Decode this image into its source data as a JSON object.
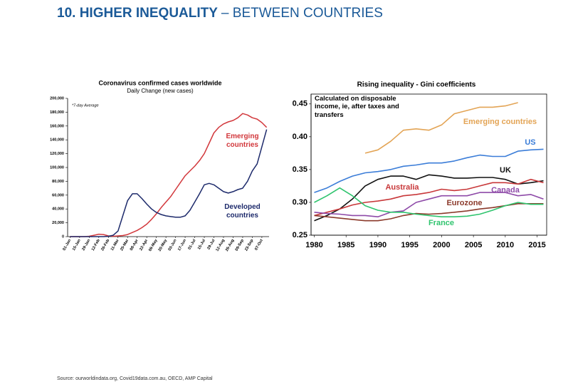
{
  "header": {
    "title": [
      "10. HIGHER INEQUALITY",
      "– BETWEEN COUNTRIES"
    ]
  },
  "chart_data": [
    {
      "type": "line",
      "title": "Coronavirus confirmed cases worldwide",
      "subtitle": "Daily Change (new cases)",
      "annotation": "*7-day Average",
      "categories": [
        "01-Jan",
        null,
        "15-Jan",
        null,
        "29-Jan",
        null,
        "12-Feb",
        null,
        "26-Feb",
        null,
        "11-Mar",
        null,
        "25-Mar",
        null,
        "08-Apr",
        null,
        "22-Apr",
        null,
        "06-May",
        null,
        "20-May",
        null,
        "03-Jun",
        null,
        "17-Jun",
        null,
        "01-Jul",
        null,
        "15-Jul",
        null,
        "29-Jul",
        null,
        "12-Aug",
        null,
        "26-Aug",
        null,
        "09-Sep",
        null,
        "23-Sep",
        null,
        "07-Oct",
        null
      ],
      "series": [
        {
          "name": "Emerging countries",
          "color": "#d2383c",
          "values": [
            0,
            0,
            0,
            0,
            500,
            2000,
            3500,
            3000,
            1000,
            500,
            1000,
            1500,
            3000,
            6000,
            9000,
            13000,
            18000,
            25000,
            33000,
            42000,
            50000,
            58000,
            68000,
            78000,
            88000,
            95000,
            102000,
            110000,
            120000,
            135000,
            150000,
            158000,
            163000,
            166000,
            168000,
            172000,
            178000,
            176000,
            172000,
            170000,
            165000,
            158000
          ]
        },
        {
          "name": "Developed countries",
          "color": "#1d2a6b",
          "values": [
            0,
            0,
            0,
            0,
            0,
            0,
            0,
            0,
            500,
            2000,
            8000,
            30000,
            52000,
            62000,
            62000,
            55000,
            47000,
            40000,
            35000,
            32000,
            30000,
            29000,
            28000,
            28000,
            30000,
            38000,
            50000,
            62000,
            75000,
            77000,
            75000,
            70000,
            65000,
            63000,
            65000,
            68000,
            70000,
            80000,
            95000,
            105000,
            130000,
            155000
          ]
        }
      ],
      "ylim": [
        0,
        200000
      ],
      "yticks": [
        0,
        {
          "value": 20000,
          "label": "20,000"
        },
        {
          "value": 40000,
          "label": "40,000"
        },
        {
          "value": 60000,
          "label": "60,000"
        },
        {
          "value": 80000,
          "label": "80,000"
        },
        {
          "value": 100000,
          "label": "100,000"
        },
        {
          "value": 120000,
          "label": "120,000"
        },
        {
          "value": 140000,
          "label": "140,000"
        },
        {
          "value": 160000,
          "label": "160,000"
        },
        {
          "value": 180000,
          "label": "180,000"
        },
        {
          "value": 200000,
          "label": "200,000"
        }
      ]
    },
    {
      "type": "line",
      "title": "Rising inequality - Gini coefficients",
      "annotation": "Calculated on disposable income, ie, after taxes and transfers",
      "x": [
        1980,
        1982,
        1984,
        1986,
        1988,
        1990,
        1992,
        1994,
        1996,
        1998,
        2000,
        2002,
        2004,
        2006,
        2008,
        2010,
        2012,
        2014,
        2016
      ],
      "series": [
        {
          "name": "Emerging countries",
          "color": "#e3a455",
          "values": [
            null,
            null,
            null,
            null,
            0.375,
            0.38,
            0.393,
            0.41,
            0.412,
            0.41,
            0.418,
            0.435,
            0.44,
            0.445,
            0.445,
            0.447,
            0.452,
            null,
            null
          ]
        },
        {
          "name": "US",
          "color": "#3b7dd8",
          "values": [
            0.315,
            0.322,
            0.332,
            0.34,
            0.345,
            0.347,
            0.35,
            0.355,
            0.357,
            0.36,
            0.36,
            0.363,
            0.368,
            0.372,
            0.37,
            0.37,
            0.378,
            0.38,
            0.381
          ]
        },
        {
          "name": "UK",
          "color": "#111111",
          "values": [
            0.272,
            0.28,
            0.29,
            0.305,
            0.325,
            0.335,
            0.34,
            0.34,
            0.335,
            0.342,
            0.34,
            0.337,
            0.337,
            0.338,
            0.338,
            0.335,
            0.328,
            0.33,
            0.333
          ]
        },
        {
          "name": "Australia",
          "color": "#c8383a",
          "values": [
            0.28,
            0.285,
            0.29,
            0.296,
            0.3,
            0.302,
            0.305,
            0.31,
            0.312,
            0.315,
            0.32,
            0.318,
            0.32,
            0.325,
            0.33,
            0.33,
            0.328,
            0.335,
            0.33
          ]
        },
        {
          "name": "Canada",
          "color": "#8e4aa8",
          "values": [
            0.285,
            0.283,
            0.282,
            0.28,
            0.28,
            0.278,
            0.285,
            0.287,
            0.3,
            0.305,
            0.31,
            0.31,
            0.31,
            0.315,
            0.315,
            0.315,
            0.31,
            0.312,
            0.305
          ]
        },
        {
          "name": "Eurozone",
          "color": "#8b3a2b",
          "values": [
            0.28,
            0.278,
            0.276,
            0.274,
            0.272,
            0.272,
            0.275,
            0.28,
            0.283,
            0.282,
            0.283,
            0.285,
            0.287,
            0.29,
            0.292,
            0.295,
            0.298,
            0.298,
            0.298
          ]
        },
        {
          "name": "France",
          "color": "#2fc46e",
          "values": [
            0.3,
            0.31,
            0.322,
            0.31,
            0.295,
            0.288,
            0.285,
            0.285,
            0.282,
            0.28,
            0.278,
            0.278,
            0.279,
            0.282,
            0.288,
            0.295,
            0.3,
            0.297,
            0.297
          ]
        }
      ],
      "xlim": [
        1979.5,
        2016.5
      ],
      "xticks": [
        1980,
        1985,
        1990,
        1995,
        2000,
        2005,
        2010,
        2015
      ],
      "ylim": [
        0.25,
        0.465
      ],
      "yticks": [
        0.25,
        {
          "value": 0.3,
          "label": "0.30"
        },
        0.35,
        {
          "value": 0.4,
          "label": "0.40"
        },
        0.45
      ]
    }
  ],
  "source": "Source: ourworldindata.org, Covid19data.com.au, OECD, AMP Capital"
}
